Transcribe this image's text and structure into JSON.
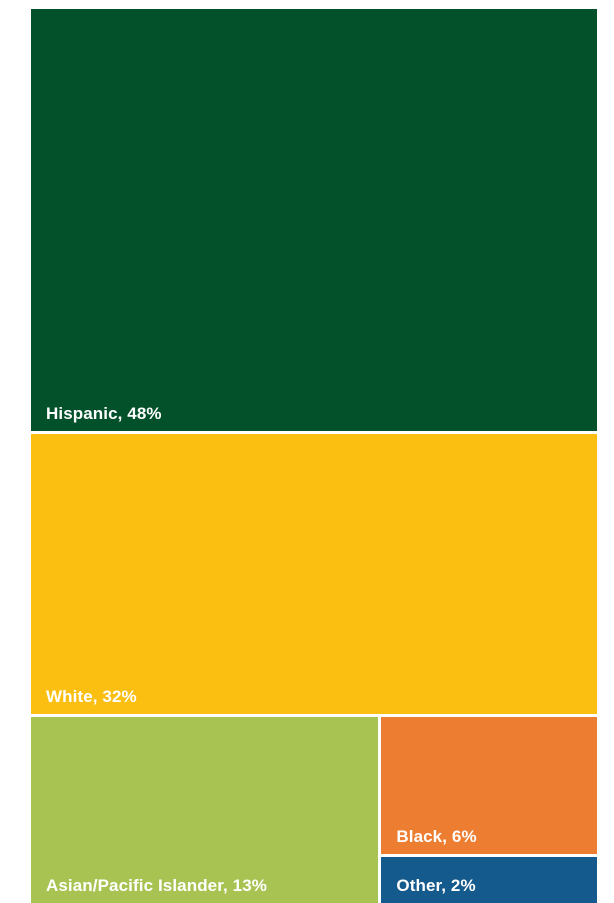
{
  "chart_data": {
    "type": "treemap",
    "title": "",
    "legend": "none",
    "series": [
      {
        "name": "Hispanic",
        "value": 48,
        "color": "#02512a",
        "label": "Hispanic, 48%"
      },
      {
        "name": "White",
        "value": 32,
        "color": "#fbbf12",
        "label": "White, 32%"
      },
      {
        "name": "Asian/Pacific Islander",
        "value": 13,
        "color": "#a8c352",
        "label": "Asian/Pacific Islander, 13%"
      },
      {
        "name": "Black",
        "value": 6,
        "color": "#ed7d31",
        "label": "Black, 6%"
      },
      {
        "name": "Other",
        "value": 2,
        "color": "#155a8d",
        "label": "Other, 2%"
      }
    ]
  }
}
